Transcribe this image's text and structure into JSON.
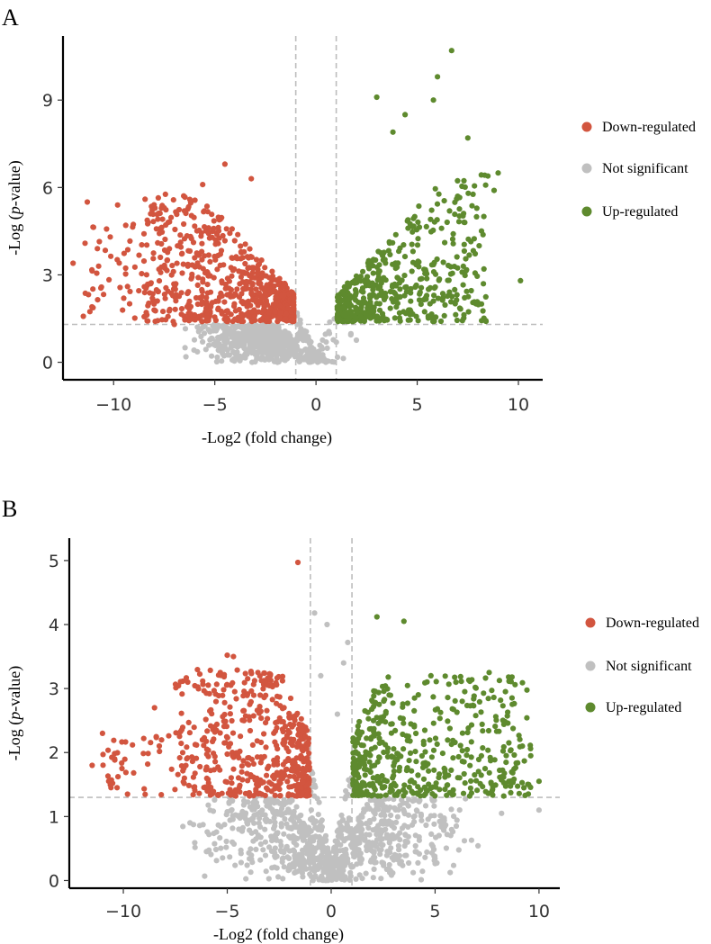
{
  "colors": {
    "down": "#d2553f",
    "ns": "#c0c0c0",
    "up": "#5e8a2e",
    "threshold_line": "#bdbdbd"
  },
  "chart_data": [
    {
      "panel_label": "A",
      "type": "scatter",
      "title": "",
      "xlabel": "-Log2 (fold change)",
      "ylabel_prefix": "-Log (",
      "ylabel_italic": "p",
      "ylabel_suffix": "-value)",
      "xlim": [
        -12.5,
        11.2
      ],
      "ylim": [
        -0.6,
        11.2
      ],
      "xticks": [
        -10,
        -5,
        0,
        5,
        10
      ],
      "xtick_labels": [
        "−10",
        "−5",
        "0",
        "5",
        "10"
      ],
      "yticks": [
        0,
        3,
        6,
        9
      ],
      "ytick_labels": [
        "0",
        "3",
        "6",
        "9"
      ],
      "fc_threshold": [
        -1,
        1
      ],
      "p_threshold": 1.3,
      "legend": [
        {
          "label": "Down-regulated",
          "group": "down"
        },
        {
          "label": "Not significant",
          "group": "ns"
        },
        {
          "label": "Up-regulated",
          "group": "up"
        }
      ],
      "highlight_points": {
        "up": [
          [
            6.7,
            10.7
          ],
          [
            6.0,
            9.8
          ],
          [
            5.8,
            9.0
          ],
          [
            3.0,
            9.1
          ],
          [
            4.4,
            8.5
          ],
          [
            7.5,
            7.7
          ],
          [
            9.0,
            6.5
          ],
          [
            10.1,
            2.8
          ],
          [
            5.8,
            2.1
          ],
          [
            6.2,
            4.6
          ],
          [
            3.8,
            7.9
          ],
          [
            8.8,
            5.9
          ]
        ],
        "down": [
          [
            -12.0,
            3.4
          ],
          [
            -11.3,
            5.5
          ],
          [
            -9.8,
            5.4
          ],
          [
            -4.5,
            6.8
          ],
          [
            -5.6,
            6.1
          ],
          [
            -3.2,
            6.3
          ],
          [
            -7.5,
            5.3
          ],
          [
            -10.8,
            3.9
          ],
          [
            -9.5,
            2.2
          ],
          [
            -8.0,
            2.0
          ],
          [
            -7.0,
            1.3
          ]
        ],
        "ns": []
      },
      "clusters": [
        {
          "group": "down",
          "x": [
            -8.5,
            -1.1
          ],
          "y": [
            1.4,
            5.8
          ],
          "n": 720,
          "skew": "dense_near_threshold"
        },
        {
          "group": "down",
          "x": [
            -11.5,
            -8.5
          ],
          "y": [
            1.5,
            4.8
          ],
          "n": 45,
          "skew": "uniform"
        },
        {
          "group": "up",
          "x": [
            1.05,
            8.5
          ],
          "y": [
            1.4,
            6.8
          ],
          "n": 520,
          "skew": "dense_near_threshold"
        },
        {
          "group": "ns",
          "x": [
            -7.0,
            2.5
          ],
          "y": [
            0.0,
            1.3
          ],
          "n": 650,
          "skew": "volcano_base"
        }
      ]
    },
    {
      "panel_label": "B",
      "type": "scatter",
      "title": "",
      "xlabel": "-Log2 (fold change)",
      "ylabel_prefix": "-Log (",
      "ylabel_italic": "p",
      "ylabel_suffix": "-value)",
      "xlim": [
        -12.6,
        11.0
      ],
      "ylim": [
        -0.12,
        5.35
      ],
      "xticks": [
        -10,
        -5,
        0,
        5,
        10
      ],
      "xtick_labels": [
        "−10",
        "−5",
        "0",
        "5",
        "10"
      ],
      "yticks": [
        0,
        1,
        2,
        3,
        4,
        5
      ],
      "ytick_labels": [
        "0",
        "1",
        "2",
        "3",
        "4",
        "5"
      ],
      "fc_threshold": [
        -1,
        1
      ],
      "p_threshold": 1.3,
      "legend": [
        {
          "label": "Down-regulated",
          "group": "down"
        },
        {
          "label": "Not significant",
          "group": "ns"
        },
        {
          "label": "Up-regulated",
          "group": "up"
        }
      ],
      "highlight_points": {
        "down": [
          [
            -1.6,
            4.97
          ],
          [
            -5.0,
            3.52
          ],
          [
            -4.7,
            3.5
          ],
          [
            -6.9,
            3.1
          ],
          [
            -11.0,
            2.3
          ],
          [
            -11.5,
            1.8
          ],
          [
            -10.3,
            1.45
          ],
          [
            -9.8,
            1.35
          ],
          [
            -8.5,
            2.7
          ]
        ],
        "up": [
          [
            2.2,
            4.12
          ],
          [
            3.5,
            4.05
          ],
          [
            7.6,
            3.25
          ],
          [
            8.7,
            3.18
          ],
          [
            10.0,
            1.55
          ],
          [
            9.5,
            1.5
          ],
          [
            9.2,
            2.1
          ],
          [
            9.6,
            1.95
          ],
          [
            4.8,
            3.2
          ]
        ],
        "ns": [
          [
            -0.8,
            4.18
          ],
          [
            0.8,
            3.72
          ],
          [
            -0.5,
            3.2
          ],
          [
            0.6,
            3.4
          ],
          [
            10.0,
            1.1
          ],
          [
            8.2,
            1.05
          ],
          [
            -0.2,
            4.0
          ],
          [
            0.3,
            2.6
          ]
        ]
      },
      "clusters": [
        {
          "group": "down",
          "x": [
            -7.5,
            -1.05
          ],
          "y": [
            1.32,
            3.3
          ],
          "n": 520,
          "skew": "dense_near_threshold"
        },
        {
          "group": "down",
          "x": [
            -11.0,
            -7.5
          ],
          "y": [
            1.32,
            2.3
          ],
          "n": 40,
          "skew": "uniform"
        },
        {
          "group": "up",
          "x": [
            1.05,
            9.6
          ],
          "y": [
            1.32,
            3.2
          ],
          "n": 470,
          "skew": "dense_near_threshold"
        },
        {
          "group": "ns",
          "x": [
            -8.0,
            8.0
          ],
          "y": [
            0.0,
            1.3
          ],
          "n": 900,
          "skew": "volcano_base"
        }
      ]
    }
  ]
}
